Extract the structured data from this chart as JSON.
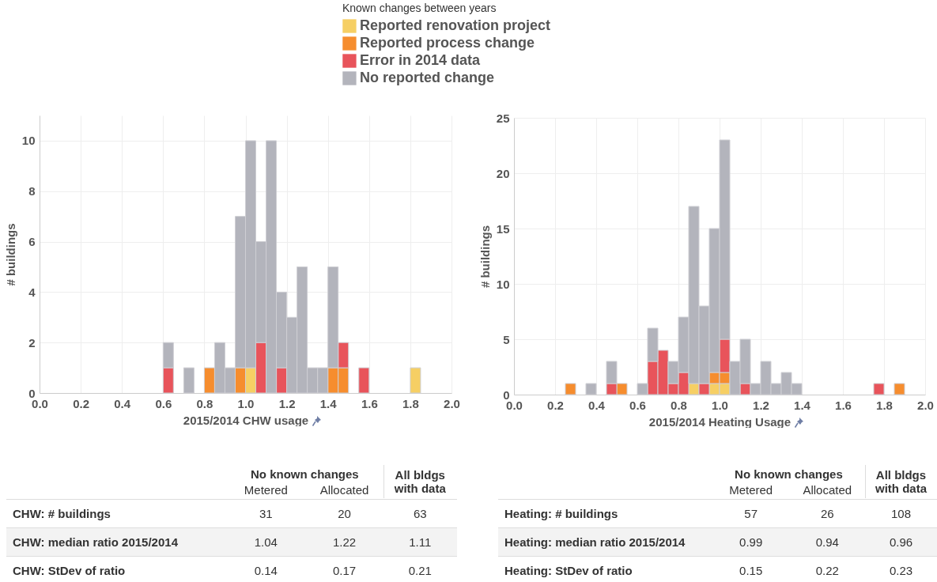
{
  "chart_data": [
    {
      "type": "bar",
      "xlabel": "2015/2014 CHW usage",
      "ylabel": "# buildings",
      "legend_title": "Known changes between years",
      "legend": "top",
      "grid": true,
      "stacked": true,
      "x": [
        0.625,
        0.675,
        0.725,
        0.775,
        0.825,
        0.875,
        0.925,
        0.975,
        1.025,
        1.075,
        1.125,
        1.175,
        1.225,
        1.275,
        1.325,
        1.375,
        1.425,
        1.475,
        1.525,
        1.575,
        1.625,
        1.675,
        1.725,
        1.775,
        1.825
      ],
      "xlim": [
        0,
        2.0
      ],
      "xticks": [
        {
          "value": 0,
          "label": "0.0"
        },
        0.2,
        0.4,
        0.6,
        0.8,
        {
          "value": 1,
          "label": "1.0"
        },
        1.2,
        1.4,
        1.6,
        1.8,
        {
          "value": 2,
          "label": "2.0"
        }
      ],
      "ylim": [
        0,
        11
      ],
      "yticks": [
        0,
        2,
        4,
        6,
        8,
        10
      ],
      "series": [
        {
          "name": "Reported renovation project",
          "color": "#f6cf64",
          "values": [
            null,
            null,
            null,
            null,
            null,
            null,
            null,
            null,
            1,
            null,
            null,
            null,
            null,
            null,
            null,
            null,
            null,
            null,
            null,
            null,
            null,
            null,
            null,
            null,
            1
          ]
        },
        {
          "name": "Reported process change",
          "color": "#f68d2e",
          "values": [
            null,
            null,
            null,
            null,
            1,
            null,
            null,
            1,
            null,
            null,
            null,
            null,
            null,
            null,
            null,
            null,
            1,
            1,
            null,
            null,
            null,
            null,
            null,
            null,
            null
          ]
        },
        {
          "name": "Error in 2014 data",
          "color": "#e8545b",
          "values": [
            1,
            null,
            null,
            null,
            null,
            null,
            null,
            null,
            null,
            2,
            null,
            1,
            null,
            null,
            null,
            null,
            null,
            1,
            null,
            1,
            null,
            null,
            null,
            null,
            null
          ]
        },
        {
          "name": "No reported change",
          "color": "#b3b4bc",
          "values": [
            1,
            null,
            1,
            null,
            null,
            2,
            1,
            6,
            9,
            4,
            10,
            3,
            3,
            5,
            1,
            1,
            4,
            null,
            null,
            null,
            null,
            null,
            null,
            null,
            null
          ]
        }
      ]
    },
    {
      "type": "bar",
      "xlabel": "2015/2014 Heating Usage",
      "ylabel": "# buildings",
      "grid": true,
      "stacked": true,
      "x": [
        0.275,
        0.325,
        0.375,
        0.425,
        0.475,
        0.525,
        0.575,
        0.625,
        0.675,
        0.725,
        0.775,
        0.825,
        0.875,
        0.925,
        0.975,
        1.025,
        1.075,
        1.125,
        1.175,
        1.225,
        1.275,
        1.325,
        1.375,
        1.425,
        1.475,
        1.525,
        1.575,
        1.625,
        1.675,
        1.725,
        1.775,
        1.825,
        1.875
      ],
      "xlim": [
        0,
        2.0
      ],
      "xticks": [
        {
          "value": 0,
          "label": "0.0"
        },
        0.2,
        0.4,
        0.6,
        0.8,
        {
          "value": 1,
          "label": "1.0"
        },
        1.2,
        1.4,
        1.6,
        1.8,
        {
          "value": 2,
          "label": "2.0"
        }
      ],
      "ylim": [
        0,
        25
      ],
      "yticks": [
        0,
        5,
        10,
        15,
        20,
        25
      ],
      "series": [
        {
          "color": "#f6cf64",
          "values": [
            null,
            null,
            null,
            null,
            null,
            null,
            null,
            null,
            null,
            null,
            null,
            null,
            1,
            null,
            1,
            1,
            null,
            null,
            null,
            null,
            null,
            null,
            null,
            null,
            null,
            null,
            null,
            null,
            null,
            null,
            null,
            null,
            null
          ]
        },
        {
          "color": "#f68d2e",
          "values": [
            1,
            null,
            null,
            null,
            null,
            1,
            null,
            null,
            null,
            null,
            null,
            null,
            null,
            null,
            1,
            1,
            null,
            null,
            null,
            null,
            null,
            null,
            null,
            null,
            null,
            null,
            null,
            null,
            null,
            null,
            null,
            null,
            1
          ]
        },
        {
          "color": "#e8545b",
          "values": [
            null,
            null,
            null,
            null,
            1,
            null,
            null,
            null,
            3,
            4,
            1,
            2,
            null,
            1,
            null,
            3,
            null,
            1,
            null,
            null,
            null,
            null,
            null,
            null,
            null,
            null,
            null,
            null,
            null,
            null,
            1,
            null,
            null
          ]
        },
        {
          "color": "#b3b4bc",
          "values": [
            null,
            null,
            1,
            null,
            2,
            null,
            null,
            1,
            3,
            null,
            2,
            5,
            16,
            7,
            13,
            18,
            3,
            4,
            1,
            3,
            1,
            2,
            1,
            null,
            null,
            null,
            null,
            null,
            null,
            null,
            null,
            null,
            null
          ]
        }
      ]
    },
    {
      "type": "other",
      "annotations": [
        "No known changes",
        "Metered",
        "Allocated",
        "All bldgs with data",
        "CHW: # buildings",
        "31",
        "20",
        "63",
        "CHW: median ratio 2015/2014",
        "1.04",
        "1.22",
        "1.11",
        "CHW: StDev of ratio",
        "0.14",
        "0.17",
        "0.21"
      ]
    },
    {
      "type": "other",
      "annotations": [
        "No known changes",
        "Metered",
        "Allocated",
        "All bldgs with data",
        "Heating: # buildings",
        "57",
        "26",
        "108",
        "Heating: median ratio 2015/2014",
        "0.99",
        "0.94",
        "0.96",
        "Heating: StDev of ratio",
        "0.15",
        "0.22",
        "0.23"
      ]
    }
  ]
}
